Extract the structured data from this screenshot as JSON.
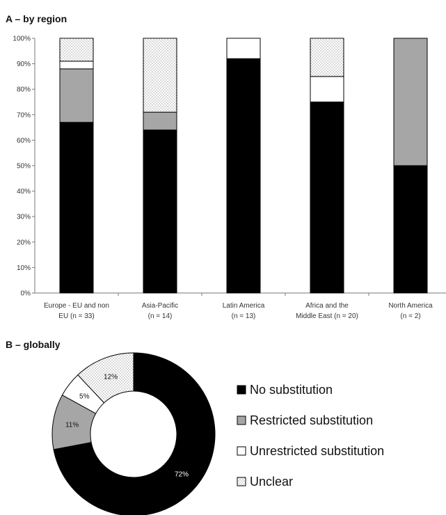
{
  "chart_data": [
    {
      "type": "bar",
      "stacked": true,
      "title": "A – by region",
      "categories": [
        [
          "Europe - EU and non",
          "EU (n = 33)"
        ],
        [
          "Asia-Pacific",
          "(n = 14)"
        ],
        [
          "Latin America",
          "(n = 13)"
        ],
        [
          "Africa and the",
          "Middle East (n = 20)"
        ],
        [
          "North America",
          "(n = 2)"
        ]
      ],
      "series": [
        {
          "name": "No substitution",
          "values": [
            67,
            64,
            92,
            75,
            50
          ],
          "color": "#000000",
          "pattern": "solid"
        },
        {
          "name": "Restricted substitution",
          "values": [
            21,
            7,
            0,
            0,
            50
          ],
          "color": "#a6a6a6",
          "pattern": "solid"
        },
        {
          "name": "Unrestricted substitution",
          "values": [
            3,
            0,
            8,
            10,
            0
          ],
          "color": "#ffffff",
          "pattern": "solid"
        },
        {
          "name": "Unclear",
          "values": [
            9,
            29,
            0,
            15,
            0
          ],
          "color": "#ffffff",
          "pattern": "dots"
        }
      ],
      "ylim": [
        0,
        100
      ],
      "yticks": [
        "0%",
        "10%",
        "20%",
        "30%",
        "40%",
        "50%",
        "60%",
        "70%",
        "80%",
        "90%",
        "100%"
      ],
      "legend": "none"
    },
    {
      "type": "pie",
      "style": "donut",
      "title": "B – globally",
      "slices": [
        {
          "name": "No substitution",
          "value": 72,
          "label": "72%",
          "color": "#000000",
          "pattern": "solid"
        },
        {
          "name": "Restricted substitution",
          "value": 11,
          "label": "11%",
          "color": "#a6a6a6",
          "pattern": "solid"
        },
        {
          "name": "Unrestricted substitution",
          "value": 5,
          "label": "5%",
          "color": "#ffffff",
          "pattern": "solid"
        },
        {
          "name": "Unclear",
          "value": 12,
          "label": "12%",
          "color": "#ffffff",
          "pattern": "dots"
        }
      ],
      "legend": "right"
    }
  ]
}
